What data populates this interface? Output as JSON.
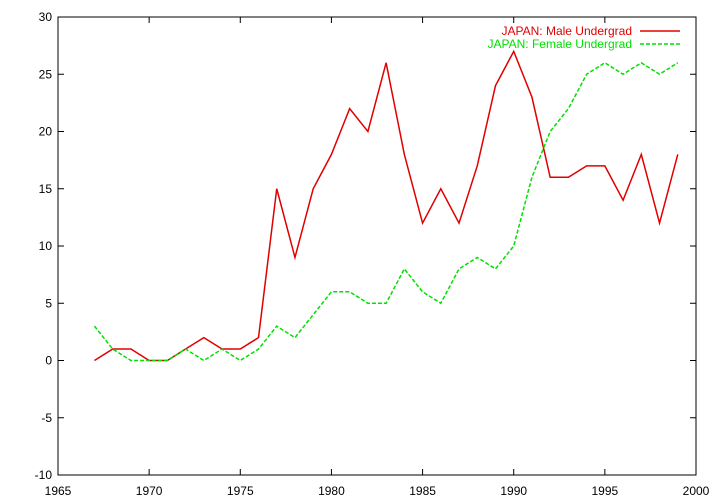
{
  "chart_data": {
    "type": "line",
    "title": "",
    "xlabel": "",
    "ylabel": "",
    "xlim": [
      1965,
      2000
    ],
    "ylim": [
      -10,
      30
    ],
    "xticks": [
      1965,
      1970,
      1975,
      1980,
      1985,
      1990,
      1995,
      2000
    ],
    "yticks": [
      -10,
      -5,
      0,
      5,
      10,
      15,
      20,
      25,
      30
    ],
    "grid": false,
    "legend_position": "top-right",
    "x": [
      1967,
      1968,
      1969,
      1970,
      1971,
      1972,
      1973,
      1974,
      1975,
      1976,
      1977,
      1978,
      1979,
      1980,
      1981,
      1982,
      1983,
      1984,
      1985,
      1986,
      1987,
      1988,
      1989,
      1990,
      1991,
      1992,
      1993,
      1994,
      1995,
      1996,
      1997,
      1998,
      1999
    ],
    "series": [
      {
        "name": "JAPAN: Male Undergrad",
        "color": "#e00000",
        "dash": "solid",
        "values": [
          0,
          1,
          1,
          0,
          0,
          1,
          2,
          1,
          1,
          2,
          15,
          9,
          15,
          18,
          22,
          20,
          26,
          18,
          12,
          15,
          12,
          17,
          24,
          27,
          23,
          16,
          16,
          17,
          17,
          14,
          18,
          12,
          18
        ]
      },
      {
        "name": "JAPAN: Female Undergrad",
        "color": "#00e000",
        "dash": "dashed",
        "values": [
          3,
          1,
          0,
          0,
          0,
          1,
          0,
          1,
          0,
          1,
          3,
          2,
          4,
          6,
          6,
          5,
          5,
          8,
          6,
          5,
          8,
          9,
          8,
          10,
          16,
          20,
          22,
          25,
          26,
          25,
          26,
          25,
          26
        ]
      }
    ]
  }
}
